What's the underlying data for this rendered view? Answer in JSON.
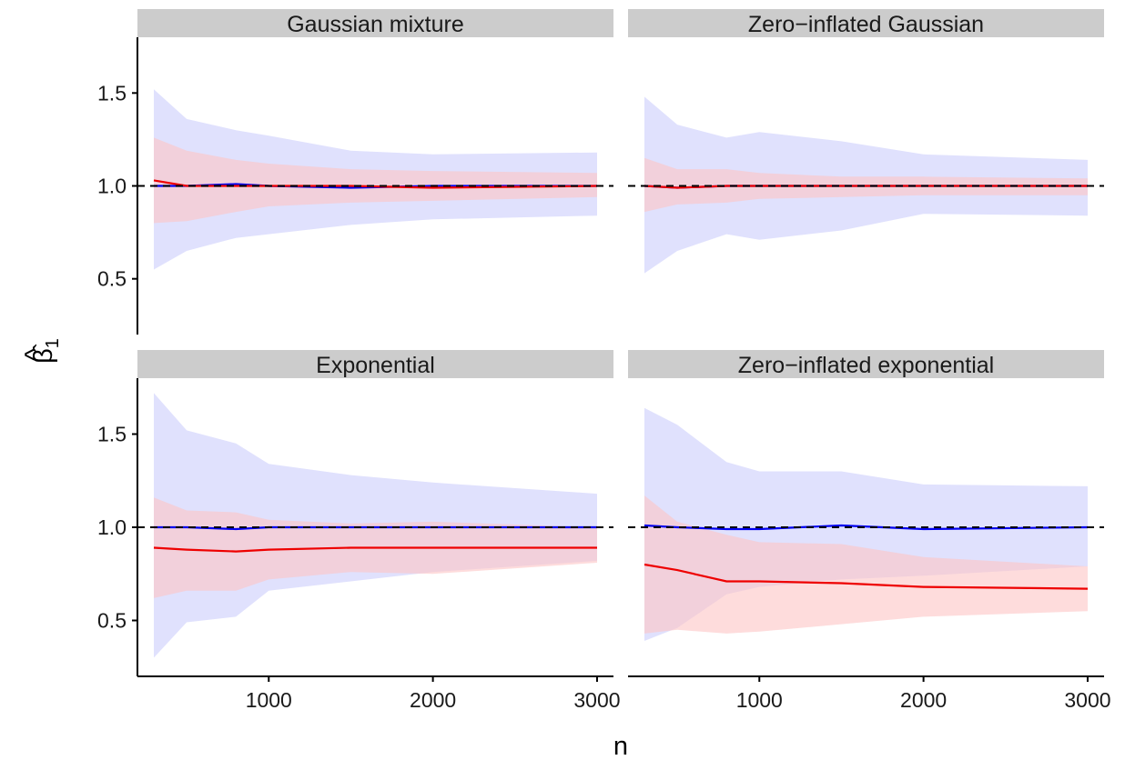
{
  "chart_data": {
    "type": "line",
    "xlabel": "n",
    "ylabel": "β̂",
    "ylabel_sub": "1",
    "ylabel_hat": "^",
    "xlim": [
      200,
      3100
    ],
    "ylim": [
      0.2,
      1.8
    ],
    "x_ticks": [
      1000,
      2000,
      3000
    ],
    "x_tick_labels": [
      "1000",
      "2000",
      "3000"
    ],
    "y_ticks": [
      0.5,
      1.0,
      1.5
    ],
    "y_tick_labels": [
      "0.5",
      "1.0",
      "1.5"
    ],
    "reference_line": 1.0,
    "grid": false,
    "colors": {
      "blue_band": "#cccdfb",
      "red_band": "#fdc4c4",
      "blue_line": "#0000ee",
      "red_line": "#ee0000",
      "reference": "#000000",
      "strip": "#cccccc"
    },
    "x": [
      300,
      500,
      800,
      1000,
      1500,
      2000,
      3000
    ],
    "panels": [
      {
        "title": "Gaussian mixture",
        "blue_mean": [
          1.0,
          1.0,
          1.01,
          1.0,
          0.99,
          1.0,
          1.0
        ],
        "blue_lower": [
          0.55,
          0.65,
          0.72,
          0.74,
          0.79,
          0.82,
          0.84
        ],
        "blue_upper": [
          1.52,
          1.36,
          1.3,
          1.27,
          1.19,
          1.17,
          1.18
        ],
        "red_mean": [
          1.03,
          1.0,
          1.0,
          1.0,
          1.0,
          0.99,
          1.0
        ],
        "red_lower": [
          0.8,
          0.81,
          0.86,
          0.89,
          0.91,
          0.92,
          0.94
        ],
        "red_upper": [
          1.26,
          1.19,
          1.14,
          1.12,
          1.09,
          1.08,
          1.07
        ]
      },
      {
        "title": "Zero−inflated Gaussian",
        "blue_mean": [
          1.0,
          0.99,
          1.0,
          1.0,
          1.0,
          1.0,
          1.0
        ],
        "blue_lower": [
          0.53,
          0.65,
          0.74,
          0.71,
          0.76,
          0.85,
          0.84
        ],
        "blue_upper": [
          1.48,
          1.33,
          1.26,
          1.29,
          1.24,
          1.17,
          1.14
        ],
        "red_mean": [
          1.0,
          0.99,
          1.0,
          1.0,
          1.0,
          1.0,
          1.0
        ],
        "red_lower": [
          0.86,
          0.9,
          0.91,
          0.93,
          0.94,
          0.95,
          0.95
        ],
        "red_upper": [
          1.15,
          1.09,
          1.09,
          1.07,
          1.05,
          1.05,
          1.04
        ]
      },
      {
        "title": "Exponential",
        "blue_mean": [
          1.0,
          1.0,
          0.99,
          1.0,
          1.0,
          1.0,
          1.0
        ],
        "blue_lower": [
          0.3,
          0.49,
          0.52,
          0.66,
          0.71,
          0.76,
          0.82
        ],
        "blue_upper": [
          1.72,
          1.52,
          1.45,
          1.34,
          1.28,
          1.24,
          1.18
        ],
        "red_mean": [
          0.89,
          0.88,
          0.87,
          0.88,
          0.89,
          0.89,
          0.89
        ],
        "red_lower": [
          0.62,
          0.66,
          0.66,
          0.72,
          0.76,
          0.75,
          0.81
        ],
        "red_upper": [
          1.16,
          1.09,
          1.08,
          1.04,
          1.02,
          1.03,
          1.0
        ]
      },
      {
        "title": "Zero−inflated exponential",
        "blue_mean": [
          1.01,
          1.0,
          0.99,
          0.99,
          1.01,
          0.99,
          1.0
        ],
        "blue_lower": [
          0.39,
          0.46,
          0.64,
          0.68,
          0.72,
          0.74,
          0.79
        ],
        "blue_upper": [
          1.64,
          1.55,
          1.35,
          1.3,
          1.3,
          1.23,
          1.22
        ],
        "red_mean": [
          0.8,
          0.77,
          0.71,
          0.71,
          0.7,
          0.68,
          0.67
        ],
        "red_lower": [
          0.43,
          0.45,
          0.43,
          0.44,
          0.48,
          0.52,
          0.55
        ],
        "red_upper": [
          1.17,
          1.03,
          0.96,
          0.92,
          0.91,
          0.84,
          0.79
        ]
      }
    ]
  }
}
